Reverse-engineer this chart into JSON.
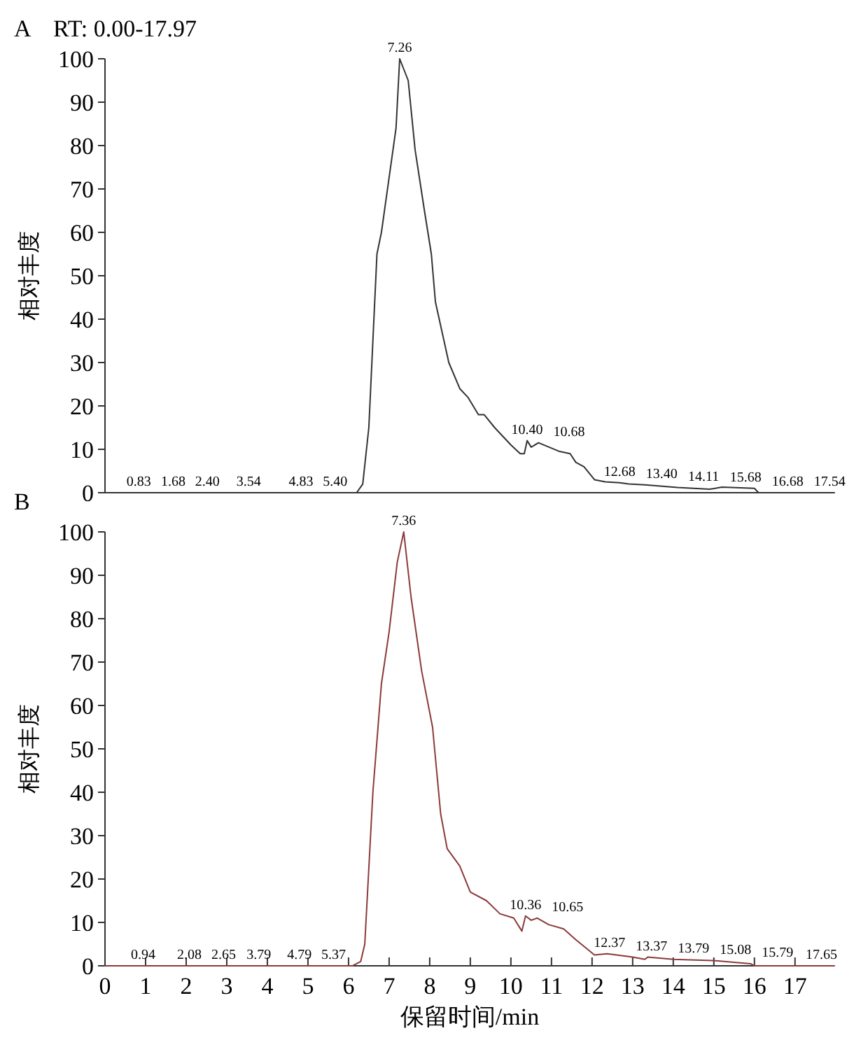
{
  "chart_data": [
    {
      "type": "line",
      "title": "A",
      "subtitle": "RT: 0.00-17.97",
      "ylabel": "相对丰度",
      "xlim": [
        0,
        17.97
      ],
      "ylim": [
        0,
        100
      ],
      "yticks": [
        0,
        10,
        20,
        30,
        40,
        50,
        60,
        70,
        80,
        90,
        100
      ],
      "tick_labels": "y",
      "grid": false,
      "marker": "none",
      "line_style": "solid",
      "series": [
        {
          "color": "#333333",
          "x": [
            0,
            6.2,
            6.35,
            6.5,
            6.6,
            6.7,
            6.81,
            6.9,
            7.17,
            7.26,
            7.47,
            7.64,
            7.87,
            8.04,
            8.14,
            8.47,
            8.74,
            8.94,
            9.2,
            9.34,
            9.6,
            10.0,
            10.23,
            10.33,
            10.4,
            10.5,
            10.68,
            11.2,
            11.46,
            11.6,
            11.8,
            12.06,
            12.33,
            12.68,
            12.9,
            13.3,
            14.1,
            14.9,
            15.2,
            16.0,
            16.1,
            17.97
          ],
          "values": [
            0,
            0,
            2,
            15,
            35,
            55,
            60,
            66,
            84,
            100,
            95,
            79,
            65,
            55,
            44,
            30,
            24,
            22,
            18,
            18,
            15,
            11,
            9,
            9,
            12,
            10.5,
            11.5,
            9.5,
            9,
            7,
            6,
            3,
            2.5,
            2.3,
            2,
            1.8,
            1.2,
            0.8,
            1.3,
            1,
            0,
            0
          ]
        }
      ],
      "annotations": [
        {
          "text": "0.83",
          "x": 0.83,
          "y": 0
        },
        {
          "text": "1.68",
          "x": 1.68,
          "y": 0
        },
        {
          "text": "2.40",
          "x": 2.4,
          "y": 0
        },
        {
          "text": "3.54",
          "x": 3.54,
          "y": 0
        },
        {
          "text": "4.83",
          "x": 4.83,
          "y": 0
        },
        {
          "text": "5.40",
          "x": 5.4,
          "y": 0
        },
        {
          "text": "7.26",
          "x": 7.26,
          "y": 100
        },
        {
          "text": "10.40",
          "x": 10.4,
          "y": 12
        },
        {
          "text": "10.68",
          "x": 10.68,
          "y": 11.5
        },
        {
          "text": "12.68",
          "x": 12.68,
          "y": 2.3
        },
        {
          "text": "13.40",
          "x": 13.4,
          "y": 1.8
        },
        {
          "text": "14.11",
          "x": 14.11,
          "y": 1.2
        },
        {
          "text": "15.68",
          "x": 15.68,
          "y": 1
        },
        {
          "text": "16.68",
          "x": 16.68,
          "y": 0
        },
        {
          "text": "17.54",
          "x": 17.54,
          "y": 0
        }
      ]
    },
    {
      "type": "line",
      "title": "B",
      "xlabel": "保留时间/min",
      "ylabel": "相对丰度",
      "xlim": [
        0,
        17.97
      ],
      "ylim": [
        0,
        100
      ],
      "xticks": [
        0,
        1,
        2,
        3,
        4,
        5,
        6,
        7,
        8,
        9,
        10,
        11,
        12,
        13,
        14,
        15,
        16,
        17
      ],
      "yticks": [
        0,
        10,
        20,
        30,
        40,
        50,
        60,
        70,
        80,
        90,
        100
      ],
      "grid": false,
      "marker": "none",
      "line_style": "solid",
      "series": [
        {
          "color": "#8b3a3a",
          "x": [
            0,
            6.1,
            6.3,
            6.4,
            6.6,
            6.81,
            7.0,
            7.2,
            7.36,
            7.54,
            7.8,
            8.07,
            8.27,
            8.43,
            8.74,
            9.0,
            9.4,
            9.73,
            10.07,
            10.27,
            10.36,
            10.5,
            10.65,
            10.93,
            11.3,
            11.6,
            12.06,
            12.37,
            13.0,
            13.3,
            13.37,
            14.0,
            15.0,
            15.9,
            16.0,
            17.97
          ],
          "values": [
            0,
            0,
            1,
            5,
            40,
            65,
            77,
            93,
            100,
            85,
            68,
            55,
            35,
            27,
            23,
            17,
            15,
            12,
            11,
            8,
            11.5,
            10.5,
            11,
            9.5,
            8.5,
            6,
            2.5,
            2.8,
            2,
            1.5,
            2,
            1.5,
            1.2,
            0.5,
            0,
            0
          ]
        }
      ],
      "annotations": [
        {
          "text": "0.94",
          "x": 0.94,
          "y": 0
        },
        {
          "text": "2.08",
          "x": 2.08,
          "y": 0
        },
        {
          "text": "2.65",
          "x": 2.65,
          "y": 0
        },
        {
          "text": "3.79",
          "x": 3.79,
          "y": 0
        },
        {
          "text": "4.79",
          "x": 4.79,
          "y": 0
        },
        {
          "text": "5.37",
          "x": 5.37,
          "y": 0
        },
        {
          "text": "7.36",
          "x": 7.36,
          "y": 100
        },
        {
          "text": "10.36",
          "x": 10.36,
          "y": 11.5
        },
        {
          "text": "10.65",
          "x": 10.65,
          "y": 11
        },
        {
          "text": "12.37",
          "x": 12.37,
          "y": 2.8
        },
        {
          "text": "13.37",
          "x": 13.37,
          "y": 2
        },
        {
          "text": "13.79",
          "x": 13.79,
          "y": 1.5
        },
        {
          "text": "15.08",
          "x": 15.08,
          "y": 1.2
        },
        {
          "text": "15.79",
          "x": 15.79,
          "y": 0.5
        },
        {
          "text": "17.65",
          "x": 17.65,
          "y": 0
        }
      ]
    }
  ]
}
